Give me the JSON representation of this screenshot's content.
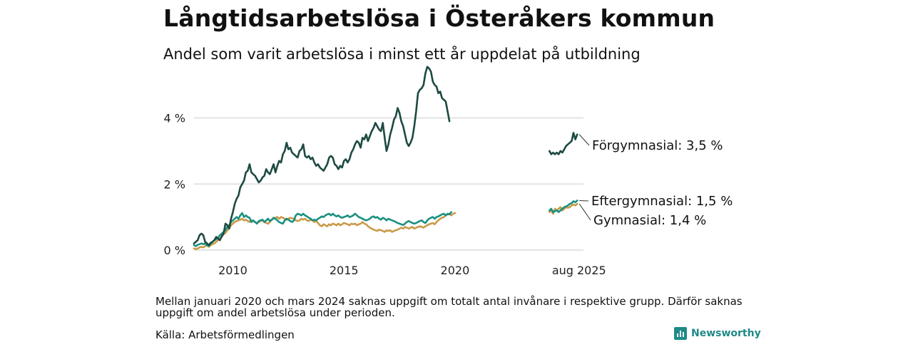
{
  "title": "Långtidsarbetslösa i Österåkers kommun",
  "subtitle": "Andel som varit arbetslösa i minst ett år uppdelat på utbildning",
  "note": "Mellan januari 2020 och mars 2024 saknas uppgift om totalt antal invånare i respektive grupp. Därför saknas uppgift om andel arbetslösa under perioden.",
  "source": "Källa: Arbetsförmedlingen",
  "brand": "Newsworthy",
  "chart_data": {
    "type": "line",
    "title": "Långtidsarbetslösa i Österåkers kommun",
    "subtitle": "Andel som varit arbetslösa i minst ett år uppdelat på utbildning",
    "xlabel": "",
    "ylabel": "",
    "ylim": [
      0,
      5.5
    ],
    "y_ticks": [
      0,
      2,
      4
    ],
    "y_tick_labels": [
      "0 %",
      "2 %",
      "4 %"
    ],
    "grid": true,
    "x_ticks": [
      {
        "x": "2010-01",
        "label": "2010"
      },
      {
        "x": "2015-01",
        "label": "2015"
      },
      {
        "x": "2020-01",
        "label": "2020"
      },
      {
        "x": "2025-08",
        "label": "aug 2025"
      }
    ],
    "legend": "direct labels at right end of lines",
    "series": [
      {
        "name": "Förgymnasial",
        "end_label": "Förgymnasial: 3,5 %",
        "color": "#1d4a42",
        "segments": [
          {
            "start": "2008-04",
            "values": [
              0.2,
              0.25,
              0.3,
              0.45,
              0.5,
              0.45,
              0.25,
              0.2,
              0.15,
              0.22,
              0.25,
              0.3,
              0.4,
              0.35,
              0.3,
              0.42,
              0.5,
              0.8,
              0.75,
              0.65,
              0.95,
              1.15,
              1.4,
              1.55,
              1.65,
              1.9,
              2.0,
              2.1,
              2.35,
              2.4,
              2.6,
              2.35,
              2.3,
              2.25,
              2.15,
              2.05,
              2.1,
              2.2,
              2.25,
              2.45,
              2.35,
              2.3,
              2.45,
              2.6,
              2.35,
              2.55,
              2.7,
              2.65,
              2.9,
              3.0,
              3.25,
              3.05,
              3.1,
              2.95,
              2.9,
              2.85,
              2.8,
              3.0,
              3.05,
              3.2,
              2.85,
              2.8,
              2.85,
              2.75,
              2.8,
              2.65,
              2.55,
              2.6,
              2.5,
              2.45,
              2.4,
              2.5,
              2.6,
              2.8,
              2.85,
              2.8,
              2.6,
              2.55,
              2.45,
              2.55,
              2.5,
              2.7,
              2.75,
              2.65,
              2.75,
              2.95,
              3.05,
              3.2,
              3.3,
              3.25,
              3.1,
              3.4,
              3.35,
              3.5,
              3.3,
              3.45,
              3.6,
              3.7,
              3.85,
              3.75,
              3.65,
              3.6,
              3.85,
              3.4,
              3.0,
              3.2,
              3.5,
              3.7,
              3.95,
              4.05,
              4.3,
              4.15,
              3.9,
              3.75,
              3.5,
              3.25,
              3.15,
              3.25,
              3.4,
              3.75,
              4.2,
              4.75,
              4.85,
              4.9,
              5.0,
              5.35,
              5.55,
              5.5,
              5.4,
              5.1,
              5.0,
              4.95,
              4.75,
              4.8,
              4.6,
              4.55,
              4.5,
              4.2,
              3.9
            ]
          },
          {
            "start": "2024-04",
            "values": [
              3.0,
              2.9,
              2.95,
              2.9,
              2.95,
              2.9,
              3.0,
              2.95,
              3.05,
              3.15,
              3.2,
              3.25,
              3.3,
              3.55,
              3.35,
              3.5
            ]
          }
        ]
      },
      {
        "name": "Eftergymnasial",
        "end_label": "Eftergymnasial: 1,5 %",
        "color": "#1a9080",
        "segments": [
          {
            "start": "2008-04",
            "values": [
              0.15,
              0.12,
              0.16,
              0.18,
              0.2,
              0.18,
              0.2,
              0.15,
              0.12,
              0.2,
              0.25,
              0.3,
              0.33,
              0.38,
              0.45,
              0.5,
              0.55,
              0.6,
              0.7,
              0.75,
              0.85,
              0.9,
              0.95,
              1.0,
              0.95,
              1.05,
              1.12,
              1.0,
              1.05,
              1.0,
              0.98,
              0.85,
              0.9,
              0.85,
              0.8,
              0.88,
              0.9,
              0.92,
              0.85,
              0.9,
              0.95,
              0.88,
              0.92,
              0.98,
              0.95,
              0.9,
              0.85,
              0.82,
              0.8,
              0.9,
              0.95,
              0.92,
              0.88,
              0.85,
              0.9,
              1.05,
              1.1,
              1.08,
              1.05,
              1.1,
              1.05,
              1.02,
              0.98,
              0.95,
              0.9,
              0.92,
              0.9,
              0.95,
              0.98,
              1.02,
              1.0,
              1.05,
              1.08,
              1.1,
              1.05,
              1.1,
              1.05,
              1.02,
              1.05,
              1.0,
              0.98,
              1.0,
              1.02,
              1.05,
              1.0,
              1.02,
              1.05,
              1.1,
              1.05,
              1.0,
              0.98,
              0.95,
              0.92,
              0.9,
              0.92,
              0.95,
              1.0,
              1.02,
              0.98,
              1.0,
              0.95,
              0.92,
              0.98,
              0.95,
              0.9,
              0.95,
              0.92,
              0.9,
              0.88,
              0.85,
              0.82,
              0.8,
              0.78,
              0.76,
              0.8,
              0.85,
              0.88,
              0.85,
              0.82,
              0.8,
              0.82,
              0.85,
              0.88,
              0.9,
              0.85,
              0.82,
              0.9,
              0.95,
              0.98,
              1.0,
              0.95,
              1.0,
              1.02,
              1.05,
              1.08,
              1.1,
              1.05,
              1.1,
              1.08,
              1.15
            ]
          },
          {
            "start": "2024-04",
            "values": [
              1.2,
              1.25,
              1.15,
              1.18,
              1.2,
              1.15,
              1.2,
              1.25,
              1.3,
              1.32,
              1.35,
              1.4,
              1.42,
              1.48,
              1.45,
              1.5
            ]
          }
        ]
      },
      {
        "name": "Gymnasial",
        "end_label": "Gymnasial: 1,4 %",
        "color": "#c99a48",
        "segments": [
          {
            "start": "2008-04",
            "values": [
              0.05,
              0.03,
              0.05,
              0.08,
              0.1,
              0.08,
              0.12,
              0.15,
              0.1,
              0.15,
              0.18,
              0.2,
              0.25,
              0.3,
              0.35,
              0.4,
              0.48,
              0.52,
              0.6,
              0.65,
              0.75,
              0.8,
              0.85,
              0.88,
              0.9,
              0.92,
              0.95,
              0.9,
              0.92,
              0.88,
              0.85,
              0.9,
              0.88,
              0.85,
              0.82,
              0.85,
              0.88,
              0.9,
              0.85,
              0.82,
              0.8,
              0.85,
              0.92,
              0.95,
              0.98,
              1.0,
              0.95,
              1.0,
              0.98,
              0.95,
              0.92,
              0.95,
              0.98,
              0.96,
              0.95,
              0.9,
              0.88,
              0.9,
              0.95,
              0.92,
              0.95,
              0.9,
              0.88,
              0.92,
              0.9,
              0.85,
              0.88,
              0.82,
              0.75,
              0.72,
              0.78,
              0.75,
              0.72,
              0.78,
              0.75,
              0.8,
              0.78,
              0.75,
              0.8,
              0.75,
              0.78,
              0.82,
              0.8,
              0.78,
              0.75,
              0.8,
              0.78,
              0.8,
              0.75,
              0.78,
              0.8,
              0.85,
              0.8,
              0.78,
              0.72,
              0.68,
              0.65,
              0.62,
              0.6,
              0.58,
              0.62,
              0.6,
              0.58,
              0.55,
              0.6,
              0.58,
              0.6,
              0.55,
              0.58,
              0.6,
              0.62,
              0.65,
              0.68,
              0.65,
              0.7,
              0.68,
              0.65,
              0.68,
              0.7,
              0.65,
              0.68,
              0.7,
              0.72,
              0.7,
              0.68,
              0.72,
              0.75,
              0.78,
              0.8,
              0.82,
              0.78,
              0.85,
              0.9,
              0.95,
              0.98,
              1.0,
              1.05,
              1.08,
              1.1,
              1.05,
              1.1,
              1.12
            ]
          },
          {
            "start": "2024-04",
            "values": [
              1.15,
              1.2,
              1.1,
              1.25,
              1.2,
              1.25,
              1.3,
              1.2,
              1.25,
              1.3,
              1.28,
              1.3,
              1.35,
              1.38,
              1.35,
              1.4
            ]
          }
        ]
      }
    ]
  }
}
